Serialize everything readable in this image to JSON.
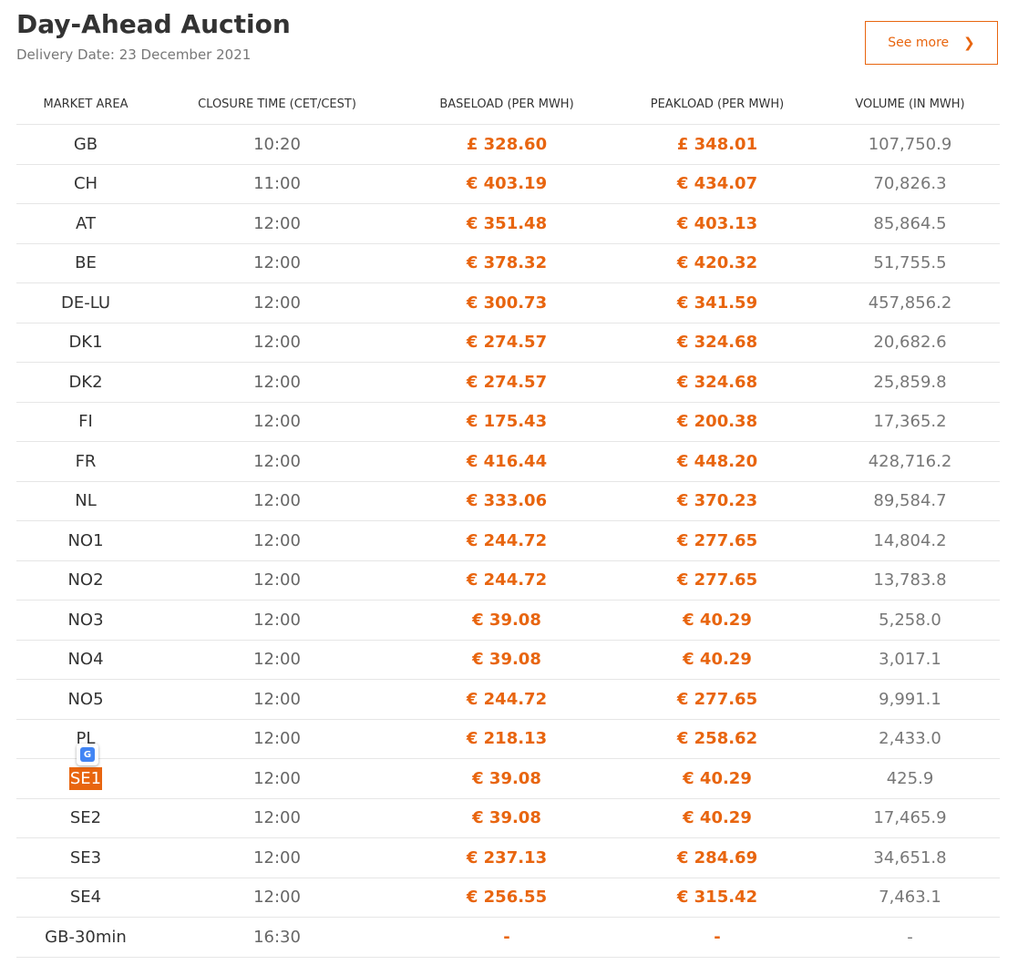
{
  "header": {
    "title": "Day-Ahead Auction",
    "subtitle": "Delivery Date: 23 December 2021",
    "see_more_label": "See more",
    "see_more_chevron": "❯"
  },
  "table": {
    "columns": [
      "MARKET AREA",
      "CLOSURE TIME (CET/CEST)",
      "BASELOAD (PER MWH)",
      "PEAKLOAD (PER MWH)",
      "VOLUME (IN MWH)"
    ],
    "rows": [
      {
        "area": "GB",
        "time": "10:20",
        "base": "£ 328.60",
        "peak": "£ 348.01",
        "volume": "107,750.9"
      },
      {
        "area": "CH",
        "time": "11:00",
        "base": "€ 403.19",
        "peak": "€ 434.07",
        "volume": "70,826.3"
      },
      {
        "area": "AT",
        "time": "12:00",
        "base": "€ 351.48",
        "peak": "€ 403.13",
        "volume": "85,864.5"
      },
      {
        "area": "BE",
        "time": "12:00",
        "base": "€ 378.32",
        "peak": "€ 420.32",
        "volume": "51,755.5"
      },
      {
        "area": "DE-LU",
        "time": "12:00",
        "base": "€ 300.73",
        "peak": "€ 341.59",
        "volume": "457,856.2"
      },
      {
        "area": "DK1",
        "time": "12:00",
        "base": "€ 274.57",
        "peak": "€ 324.68",
        "volume": "20,682.6"
      },
      {
        "area": "DK2",
        "time": "12:00",
        "base": "€ 274.57",
        "peak": "€ 324.68",
        "volume": "25,859.8"
      },
      {
        "area": "FI",
        "time": "12:00",
        "base": "€ 175.43",
        "peak": "€ 200.38",
        "volume": "17,365.2"
      },
      {
        "area": "FR",
        "time": "12:00",
        "base": "€ 416.44",
        "peak": "€ 448.20",
        "volume": "428,716.2"
      },
      {
        "area": "NL",
        "time": "12:00",
        "base": "€ 333.06",
        "peak": "€ 370.23",
        "volume": "89,584.7"
      },
      {
        "area": "NO1",
        "time": "12:00",
        "base": "€ 244.72",
        "peak": "€ 277.65",
        "volume": "14,804.2"
      },
      {
        "area": "NO2",
        "time": "12:00",
        "base": "€ 244.72",
        "peak": "€ 277.65",
        "volume": "13,783.8"
      },
      {
        "area": "NO3",
        "time": "12:00",
        "base": "€ 39.08",
        "peak": "€ 40.29",
        "volume": "5,258.0"
      },
      {
        "area": "NO4",
        "time": "12:00",
        "base": "€ 39.08",
        "peak": "€ 40.29",
        "volume": "3,017.1"
      },
      {
        "area": "NO5",
        "time": "12:00",
        "base": "€ 244.72",
        "peak": "€ 277.65",
        "volume": "9,991.1"
      },
      {
        "area": "PL",
        "time": "12:00",
        "base": "€ 218.13",
        "peak": "€ 258.62",
        "volume": "2,433.0"
      },
      {
        "area": "SE1",
        "time": "12:00",
        "base": "€ 39.08",
        "peak": "€ 40.29",
        "volume": "425.9",
        "highlighted": true
      },
      {
        "area": "SE2",
        "time": "12:00",
        "base": "€ 39.08",
        "peak": "€ 40.29",
        "volume": "17,465.9"
      },
      {
        "area": "SE3",
        "time": "12:00",
        "base": "€ 237.13",
        "peak": "€ 284.69",
        "volume": "34,651.8"
      },
      {
        "area": "SE4",
        "time": "12:00",
        "base": "€ 256.55",
        "peak": "€ 315.42",
        "volume": "7,463.1"
      },
      {
        "area": "GB-30min",
        "time": "16:30",
        "base": "-",
        "peak": "-",
        "volume": "-"
      }
    ]
  },
  "icons": {
    "translate": "google-translate-icon"
  },
  "colors": {
    "accent": "#e8650f",
    "text": "#333333",
    "muted": "#777777",
    "border": "#e6e6e6"
  }
}
